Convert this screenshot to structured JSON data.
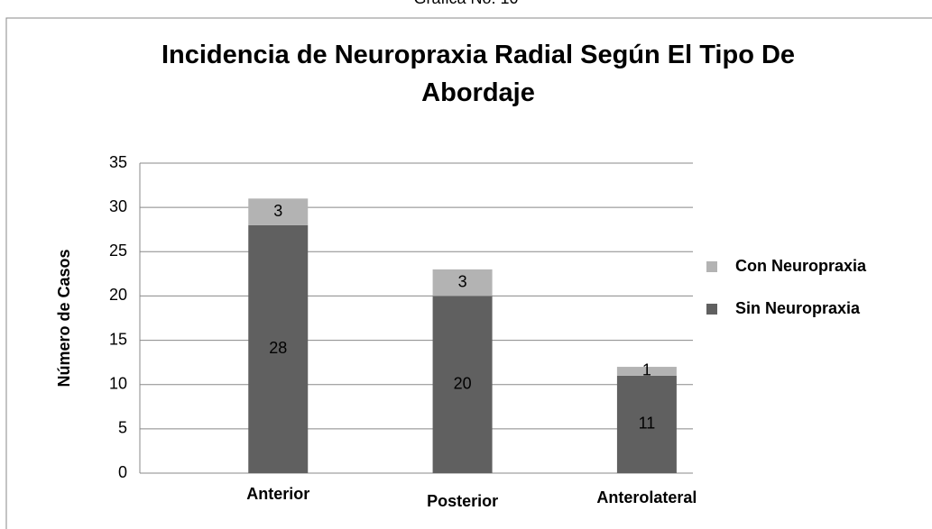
{
  "chart_data": {
    "type": "stacked_bar",
    "caption": "Gráfica No. 10",
    "title": "Incidencia de Neuropraxia Radial  Según El Tipo  De Abordaje",
    "ylabel": "Número de Casos",
    "categories": [
      "Anterior",
      "Posterior",
      "Anterolateral"
    ],
    "series": [
      {
        "name": "Sin Neuropraxia",
        "color": "#606060",
        "values": [
          28,
          20,
          11
        ]
      },
      {
        "name": "Con Neuropraxia",
        "color": "#b3b3b3",
        "values": [
          3,
          3,
          1
        ]
      }
    ],
    "ylim": [
      0,
      35
    ],
    "yticks": [
      0,
      5,
      10,
      15,
      20,
      25,
      30,
      35
    ],
    "grid": true,
    "legend": "right"
  }
}
